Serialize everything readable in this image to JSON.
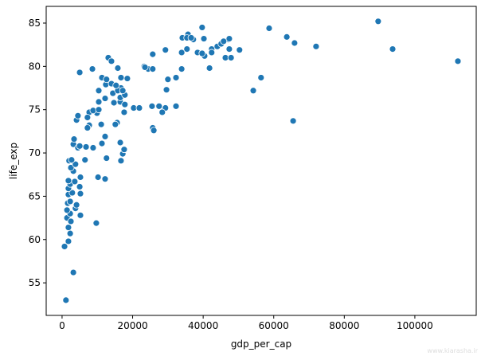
{
  "chart_data": {
    "type": "scatter",
    "x_label": "gdp_per_cap",
    "y_label": "life_exp",
    "color": "#1f77b4",
    "xlim": [
      -4500,
      117400
    ],
    "ylim": [
      51.24,
      86.93
    ],
    "xticks": [
      0,
      20000,
      40000,
      60000,
      80000,
      100000
    ],
    "yticks": [
      55,
      60,
      65,
      70,
      75,
      80,
      85
    ],
    "x": [
      1100,
      3200,
      9700,
      700,
      1800,
      2300,
      1800,
      1400,
      2500,
      2300,
      3800,
      4100,
      1400,
      5200,
      1600,
      2300,
      1800,
      2900,
      5200,
      5000,
      1800,
      2300,
      3600,
      1800,
      5200,
      10200,
      12200,
      3200,
      2500,
      3800,
      6500,
      2000,
      2700,
      12600,
      16700,
      17200,
      17600,
      6800,
      8800,
      3200,
      3400,
      4500,
      5000,
      11300,
      12200,
      16500,
      11100,
      7700,
      7200,
      4100,
      15600,
      15100,
      25700,
      26000,
      4500,
      7700,
      7200,
      9900,
      8800,
      10400,
      17600,
      20300,
      21900,
      25500,
      27500,
      29300,
      32300,
      28400,
      10400,
      14700,
      16500,
      17800,
      16500,
      12200,
      14400,
      17800,
      10400,
      16700,
      15800,
      17200,
      29600,
      54200,
      12400,
      14000,
      15300,
      11300,
      12600,
      16700,
      18500,
      30000,
      32300,
      56400,
      5000,
      8600,
      24400,
      25700,
      15800,
      41800,
      23300,
      23500,
      33900,
      13100,
      14000,
      25700,
      29300,
      33900,
      35400,
      38400,
      40400,
      39700,
      42400,
      44000,
      45100,
      46300,
      47900,
      50300,
      47400,
      42400,
      34100,
      35700,
      37200,
      40200,
      39700,
      58700,
      63700,
      65900,
      72000,
      47200,
      45800,
      65500,
      89600,
      93700,
      112200,
      35400,
      36600,
      47400
    ],
    "values": [
      53.0,
      56.2,
      61.9,
      59.2,
      59.8,
      60.7,
      61.4,
      62.5,
      62.1,
      63.0,
      63.6,
      64.0,
      63.4,
      62.8,
      64.2,
      64.4,
      65.2,
      65.4,
      65.3,
      66.1,
      65.9,
      66.4,
      66.7,
      66.8,
      67.2,
      67.2,
      67.0,
      67.9,
      68.3,
      68.7,
      69.2,
      69.1,
      69.2,
      69.4,
      69.1,
      69.9,
      70.4,
      70.7,
      70.6,
      71.0,
      71.6,
      70.6,
      70.8,
      71.1,
      71.9,
      71.2,
      73.3,
      73.2,
      72.9,
      73.8,
      73.5,
      73.3,
      72.9,
      72.6,
      74.3,
      74.7,
      74.1,
      74.6,
      74.9,
      75.0,
      74.7,
      75.2,
      75.2,
      75.4,
      75.4,
      75.2,
      75.4,
      74.7,
      75.9,
      75.8,
      75.9,
      75.6,
      76.4,
      76.3,
      76.9,
      76.7,
      77.2,
      77.5,
      77.2,
      77.2,
      77.3,
      77.2,
      77.9,
      78.0,
      77.8,
      78.7,
      78.5,
      78.7,
      78.6,
      78.5,
      78.7,
      78.7,
      79.3,
      79.7,
      79.7,
      79.7,
      79.8,
      79.8,
      80.0,
      79.9,
      79.7,
      81.0,
      80.6,
      81.4,
      81.9,
      81.6,
      82.0,
      81.6,
      81.2,
      81.5,
      82.0,
      82.3,
      82.6,
      81.0,
      81.0,
      81.9,
      82.0,
      81.6,
      83.3,
      83.7,
      83.1,
      83.2,
      84.5,
      84.4,
      83.4,
      82.7,
      82.3,
      83.1,
      82.9,
      73.7,
      85.2,
      82.0,
      80.6,
      83.3,
      83.3,
      83.2
    ]
  },
  "watermark": "www.kiarasha.ir"
}
